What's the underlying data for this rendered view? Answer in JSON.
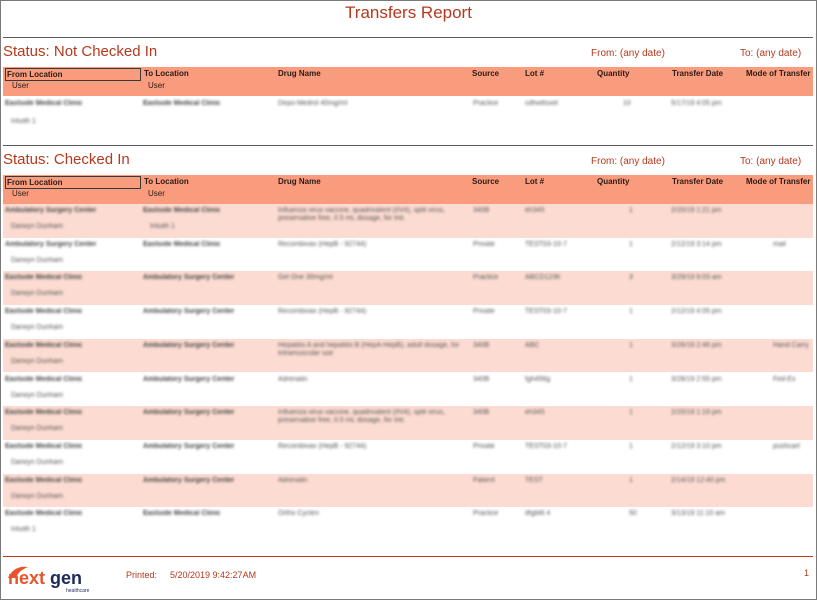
{
  "report": {
    "title": "Transfers Report"
  },
  "columns": {
    "from_location": "From Location",
    "to_location": "To Location",
    "drug_name": "Drug Name",
    "source": "Source",
    "lot": "Lot #",
    "quantity": "Quantity",
    "transfer_date": "Transfer Date",
    "mode": "Mode of Transfer",
    "user": "User"
  },
  "sections": [
    {
      "status": "Status: Not Checked In",
      "from_label": "From:  (any date)",
      "to_label": "To:  (any date)",
      "rows": [
        {
          "from": "Eastside Medical Clinic",
          "from_user": "Intuith 1",
          "to": "Eastside Medical Clinic",
          "to_user": "",
          "drug": "Depo-Medrol 40mg/ml",
          "source": "Practice",
          "lot": "cdhwttsxet",
          "qty": "10",
          "date": "5/17/19   4:05 pm",
          "mode": ""
        }
      ]
    },
    {
      "status": "Status: Checked In",
      "from_label": "From:  (any date)",
      "to_label": "To:  (any date)",
      "rows": [
        {
          "from": "Ambulatory Surgery Center",
          "from_user": "Darwyn Dunham",
          "to": "Eastside Medical Clinic",
          "to_user": "Intuith 1",
          "drug": "Influenza virus vaccine, quadrivalent (IIV4), split virus, preservative free, 0.5 mL dosage, for intr.",
          "source": "340B",
          "lot": "eh345",
          "qty": "1",
          "date": "2/20/19   1:21 pm",
          "mode": ""
        },
        {
          "from": "Ambulatory Surgery Center",
          "from_user": "Darwyn Dunham",
          "to": "Eastside Medical Clinic",
          "to_user": "",
          "drug": "Recombivax (HepB - 92744)",
          "source": "Private",
          "lot": "TEST03-10-7",
          "qty": "1",
          "date": "2/12/19   3:14 pm",
          "mode": "mail"
        },
        {
          "from": "Eastside Medical Clinic",
          "from_user": "Darwyn Dunham",
          "to": "Ambulatory Surgery Center",
          "to_user": "",
          "drug": "Gel One 30mg/ml",
          "source": "Practice",
          "lot": "ABCD123K",
          "qty": "3",
          "date": "3/29/19   9:03 am",
          "mode": ""
        },
        {
          "from": "Eastside Medical Clinic",
          "from_user": "Darwyn Dunham",
          "to": "Ambulatory Surgery Center",
          "to_user": "",
          "drug": "Recombivax (HepB - 92744)",
          "source": "Private",
          "lot": "TEST03-10-7",
          "qty": "1",
          "date": "2/12/19   4:05 pm",
          "mode": ""
        },
        {
          "from": "Eastside Medical Clinic",
          "from_user": "Darwyn Dunham",
          "to": "Ambulatory Surgery Center",
          "to_user": "",
          "drug": "Hepatitis A and hepatitis B (HepA-HepB), adult dosage, for intramuscular use",
          "source": "340B",
          "lot": "ABC",
          "qty": "1",
          "date": "3/26/19   2:46 pm",
          "mode": "Hand Carry"
        },
        {
          "from": "Eastside Medical Clinic",
          "from_user": "Darwyn Dunham",
          "to": "Ambulatory Surgery Center",
          "to_user": "",
          "drug": "Adrenalin",
          "source": "340B",
          "lot": "fgh456g",
          "qty": "1",
          "date": "3/28/19   2:55 pm",
          "mode": "Fed-Ex"
        },
        {
          "from": "Eastside Medical Clinic",
          "from_user": "Darwyn Dunham",
          "to": "Ambulatory Surgery Center",
          "to_user": "",
          "drug": "Influenza virus vaccine, quadrivalent (IIV4), split virus, preservative free, 0.5 mL dosage, for intr.",
          "source": "340B",
          "lot": "eh345",
          "qty": "1",
          "date": "2/20/19   1:19 pm",
          "mode": ""
        },
        {
          "from": "Eastside Medical Clinic",
          "from_user": "Darwyn Dunham",
          "to": "Ambulatory Surgery Center",
          "to_user": "",
          "drug": "Recombivax (HepB - 92744)",
          "source": "Private",
          "lot": "TEST03-10-7",
          "qty": "1",
          "date": "2/12/19   3:10 pm",
          "mode": "pushcart"
        },
        {
          "from": "Eastside Medical Clinic",
          "from_user": "Darwyn Dunham",
          "to": "Ambulatory Surgery Center",
          "to_user": "",
          "drug": "Adrenalin",
          "source": "Patient",
          "lot": "TEST",
          "qty": "1",
          "date": "2/14/19  12:40 pm",
          "mode": ""
        },
        {
          "from": "Eastside Medical Clinic",
          "from_user": "Intuith 1",
          "to": "Eastside Medical Clinic",
          "to_user": "",
          "drug": "Ortho Cyclen",
          "source": "Practice",
          "lot": "dfgbt6 4",
          "qty": "50",
          "date": "3/13/19  11:10 am",
          "mode": ""
        }
      ]
    }
  ],
  "footer": {
    "printed_label": "Printed:",
    "printed_value": "5/20/2019  9:42:27AM",
    "page_number": "1",
    "logo": {
      "text_next": "next",
      "text_gen": "gen",
      "sub": "healthcare"
    }
  },
  "colors": {
    "accent": "#b5391c",
    "header_bg": "#f99b7d",
    "row_pink": "#fcdcd2"
  }
}
